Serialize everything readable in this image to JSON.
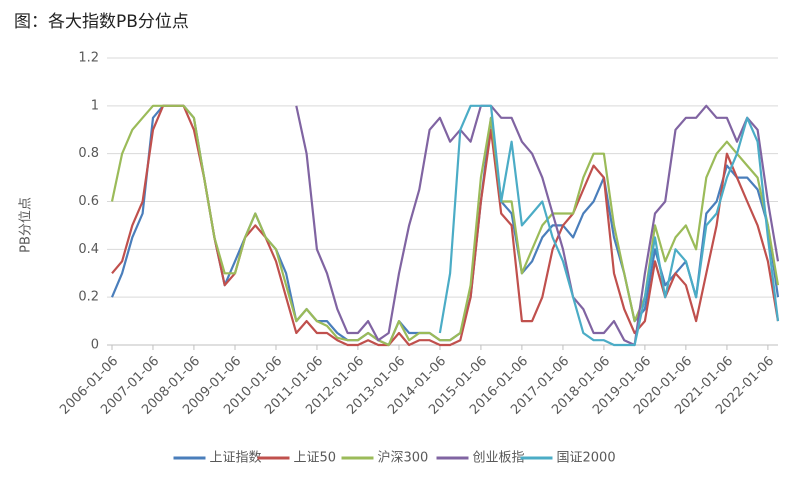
{
  "chart_data": {
    "type": "line",
    "title": "图：各大指数PB分位点",
    "y_label": "PB分位点",
    "x": [
      "2006-01-06",
      "2006-04-06",
      "2006-07-06",
      "2006-10-06",
      "2007-01-06",
      "2007-04-06",
      "2007-07-06",
      "2007-10-06",
      "2008-01-06",
      "2008-04-06",
      "2008-07-06",
      "2008-10-06",
      "2009-01-06",
      "2009-04-06",
      "2009-07-06",
      "2009-10-06",
      "2010-01-06",
      "2010-04-06",
      "2010-07-06",
      "2010-10-06",
      "2011-01-06",
      "2011-04-06",
      "2011-07-06",
      "2011-10-06",
      "2012-01-06",
      "2012-04-06",
      "2012-07-06",
      "2012-10-06",
      "2013-01-06",
      "2013-04-06",
      "2013-07-06",
      "2013-10-06",
      "2014-01-06",
      "2014-04-06",
      "2014-07-06",
      "2014-10-06",
      "2015-01-06",
      "2015-04-06",
      "2015-07-06",
      "2015-10-06",
      "2016-01-06",
      "2016-04-06",
      "2016-07-06",
      "2016-10-06",
      "2017-01-06",
      "2017-04-06",
      "2017-07-06",
      "2017-10-06",
      "2018-01-06",
      "2018-04-06",
      "2018-07-06",
      "2018-10-06",
      "2019-01-06",
      "2019-04-06",
      "2019-07-06",
      "2019-10-06",
      "2020-01-06",
      "2020-04-06",
      "2020-07-06",
      "2020-10-06",
      "2021-01-06",
      "2021-04-06",
      "2021-07-06",
      "2021-10-06",
      "2022-01-06",
      "2022-04-06"
    ],
    "series": [
      {
        "name": "上证指数",
        "color": "#4a7ebb",
        "values": [
          0.2,
          0.3,
          0.45,
          0.55,
          0.95,
          1,
          1,
          1,
          0.95,
          0.7,
          0.45,
          0.25,
          0.35,
          0.45,
          0.55,
          0.45,
          0.4,
          0.3,
          0.1,
          0.15,
          0.1,
          0.1,
          0.05,
          0.02,
          0.02,
          0.05,
          0.02,
          0,
          0.1,
          0.05,
          0.05,
          0.05,
          0.02,
          0.02,
          0.05,
          0.2,
          0.6,
          0.95,
          0.6,
          0.55,
          0.3,
          0.35,
          0.45,
          0.5,
          0.5,
          0.45,
          0.55,
          0.6,
          0.7,
          0.45,
          0.3,
          0.1,
          0.15,
          0.4,
          0.25,
          0.3,
          0.35,
          0.2,
          0.55,
          0.6,
          0.75,
          0.7,
          0.7,
          0.65,
          0.5,
          0.2
        ]
      },
      {
        "name": "上证50",
        "color": "#c0504d",
        "values": [
          0.3,
          0.35,
          0.5,
          0.6,
          0.9,
          1,
          1,
          1,
          0.9,
          0.7,
          0.45,
          0.25,
          0.3,
          0.45,
          0.5,
          0.45,
          0.35,
          0.2,
          0.05,
          0.1,
          0.05,
          0.05,
          0.02,
          0,
          0,
          0.02,
          0,
          0,
          0.05,
          0,
          0.02,
          0.02,
          0,
          0,
          0.02,
          0.2,
          0.6,
          0.9,
          0.55,
          0.5,
          0.1,
          0.1,
          0.2,
          0.4,
          0.5,
          0.55,
          0.65,
          0.75,
          0.7,
          0.3,
          0.15,
          0.05,
          0.1,
          0.35,
          0.2,
          0.3,
          0.25,
          0.1,
          0.3,
          0.5,
          0.8,
          0.7,
          0.6,
          0.5,
          0.35,
          0.1
        ]
      },
      {
        "name": "沪深300",
        "color": "#9bbb59",
        "values": [
          0.6,
          0.8,
          0.9,
          0.95,
          1,
          1,
          1,
          1,
          0.95,
          0.7,
          0.45,
          0.3,
          0.3,
          0.45,
          0.55,
          0.45,
          0.4,
          0.25,
          0.1,
          0.15,
          0.1,
          0.08,
          0.03,
          0.02,
          0.02,
          0.05,
          0.02,
          0,
          0.1,
          0.02,
          0.05,
          0.05,
          0.02,
          0.02,
          0.05,
          0.25,
          0.7,
          0.95,
          0.6,
          0.6,
          0.3,
          0.4,
          0.5,
          0.55,
          0.55,
          0.55,
          0.7,
          0.8,
          0.8,
          0.5,
          0.3,
          0.1,
          0.2,
          0.5,
          0.35,
          0.45,
          0.5,
          0.4,
          0.7,
          0.8,
          0.85,
          0.8,
          0.75,
          0.7,
          0.5,
          0.25
        ]
      },
      {
        "name": "创业板指",
        "color": "#8064a2",
        "values": [
          null,
          null,
          null,
          null,
          null,
          null,
          null,
          null,
          null,
          null,
          null,
          null,
          null,
          null,
          null,
          null,
          null,
          null,
          1,
          0.8,
          0.4,
          0.3,
          0.15,
          0.05,
          0.05,
          0.1,
          0.02,
          0.05,
          0.3,
          0.5,
          0.65,
          0.9,
          0.95,
          0.85,
          0.9,
          0.85,
          1,
          1,
          0.95,
          0.95,
          0.85,
          0.8,
          0.7,
          0.55,
          0.4,
          0.2,
          0.15,
          0.05,
          0.05,
          0.1,
          0.02,
          0,
          0.3,
          0.55,
          0.6,
          0.9,
          0.95,
          0.95,
          1,
          0.95,
          0.95,
          0.85,
          0.95,
          0.9,
          0.6,
          0.35
        ]
      },
      {
        "name": "国证2000",
        "color": "#4bacc6",
        "values": [
          null,
          null,
          null,
          null,
          null,
          null,
          null,
          null,
          null,
          null,
          null,
          null,
          null,
          null,
          null,
          null,
          null,
          null,
          null,
          null,
          null,
          null,
          null,
          null,
          null,
          null,
          null,
          null,
          null,
          null,
          null,
          null,
          0.05,
          0.3,
          0.9,
          1,
          1,
          1,
          0.6,
          0.85,
          0.5,
          0.55,
          0.6,
          0.45,
          0.35,
          0.2,
          0.05,
          0.02,
          0.02,
          0,
          0,
          0,
          0.2,
          0.45,
          0.2,
          0.4,
          0.35,
          0.2,
          0.5,
          0.55,
          0.7,
          0.8,
          0.95,
          0.85,
          0.45,
          0.1
        ]
      }
    ],
    "xlim": [
      "2006-01-06",
      "2022-04-06"
    ],
    "xticks": [
      "2006-01-06",
      "2007-01-06",
      "2008-01-06",
      "2009-01-06",
      "2010-01-06",
      "2011-01-06",
      "2012-01-06",
      "2013-01-06",
      "2014-01-06",
      "2015-01-06",
      "2016-01-06",
      "2017-01-06",
      "2018-01-06",
      "2019-01-06",
      "2020-01-06",
      "2021-01-06",
      "2022-01-06"
    ],
    "ylim": [
      0,
      1.2
    ],
    "yticks": [
      0,
      0.2,
      0.4,
      0.6,
      0.8,
      1,
      1.2
    ],
    "grid": true,
    "legend": "bottom"
  }
}
